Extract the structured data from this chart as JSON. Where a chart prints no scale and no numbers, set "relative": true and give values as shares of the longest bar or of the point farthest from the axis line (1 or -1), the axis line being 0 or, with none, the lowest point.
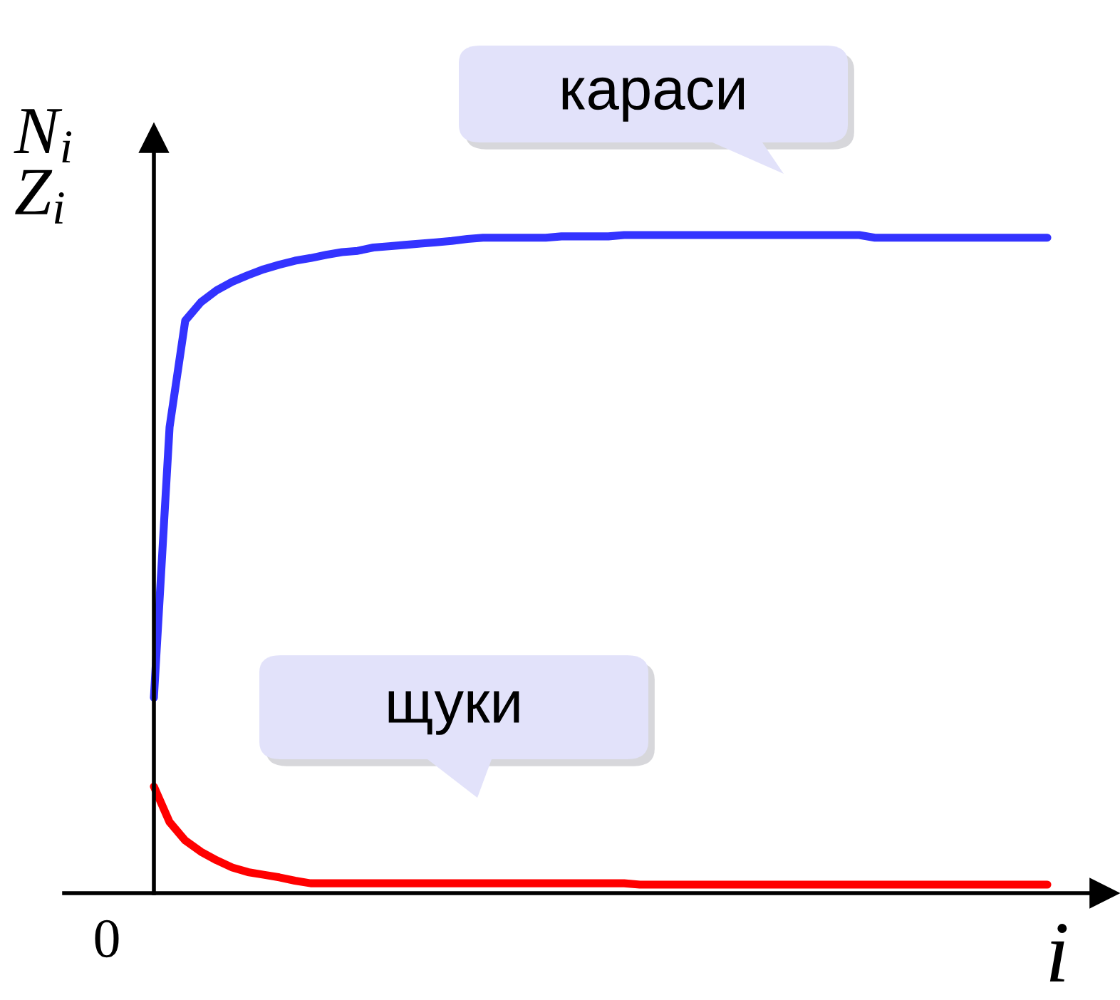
{
  "chart_data": {
    "type": "line",
    "relative": true,
    "ylabel": "N$_{i}$\nZ$_{i}$",
    "xlabel": "i",
    "annotations": [
      "0"
    ],
    "categories": [
      null,
      null,
      null,
      null,
      null,
      null,
      null,
      null,
      null,
      null,
      null,
      null,
      null,
      null,
      null,
      null,
      null,
      null,
      null,
      null,
      null,
      null,
      null,
      null,
      null,
      null,
      null,
      null,
      null,
      null,
      null,
      null,
      null,
      null,
      null,
      null,
      null,
      null,
      null,
      null,
      null,
      null,
      null,
      null,
      null,
      null,
      null,
      null,
      null,
      null,
      null,
      null,
      null,
      null,
      null,
      null,
      null,
      null
    ],
    "series": [
      {
        "name": "караси",
        "color": "#3333ff",
        "values": [
          0.297,
          0.708,
          0.87,
          0.898,
          0.916,
          0.929,
          0.939,
          0.948,
          0.955,
          0.961,
          0.965,
          0.97,
          0.974,
          0.976,
          0.981,
          0.983,
          0.985,
          0.987,
          0.989,
          0.991,
          0.994,
          0.996,
          0.996,
          0.996,
          0.996,
          0.996,
          0.998,
          0.998,
          0.998,
          0.998,
          1.0,
          1.0,
          1.0,
          1.0,
          1.0,
          1.0,
          1.0,
          1.0,
          1.0,
          1.0,
          1.0,
          1.0,
          1.0,
          1.0,
          1.0,
          1.0,
          0.996,
          0.996,
          0.996,
          0.996,
          0.996,
          0.996,
          0.996,
          0.996,
          0.996,
          0.996,
          0.996,
          0.996
        ]
      },
      {
        "name": "щуки",
        "color": "#ff0000",
        "values": [
          0.162,
          0.108,
          0.08,
          0.063,
          0.05,
          0.039,
          0.032,
          0.028,
          0.024,
          0.019,
          0.015,
          0.015,
          0.015,
          0.015,
          0.015,
          0.015,
          0.015,
          0.015,
          0.015,
          0.015,
          0.015,
          0.015,
          0.015,
          0.015,
          0.015,
          0.015,
          0.015,
          0.015,
          0.015,
          0.015,
          0.015,
          0.013,
          0.013,
          0.013,
          0.013,
          0.013,
          0.013,
          0.013,
          0.013,
          0.013,
          0.013,
          0.013,
          0.013,
          0.013,
          0.013,
          0.013,
          0.013,
          0.013,
          0.013,
          0.013,
          0.013,
          0.013,
          0.013,
          0.013,
          0.013,
          0.013,
          0.013,
          0.013
        ]
      }
    ]
  }
}
